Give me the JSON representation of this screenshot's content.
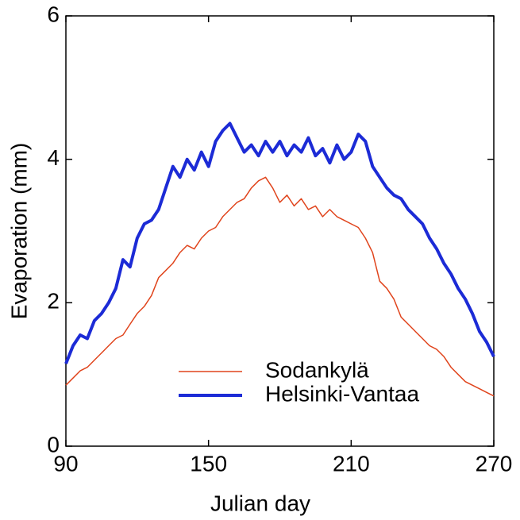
{
  "chart_data": {
    "type": "line",
    "x_label": "Julian day",
    "y_label": "Evaporation (mm)",
    "x": [
      90,
      93,
      96,
      99,
      102,
      105,
      108,
      111,
      114,
      117,
      120,
      123,
      126,
      129,
      132,
      135,
      138,
      141,
      144,
      147,
      150,
      153,
      156,
      159,
      162,
      165,
      168,
      171,
      174,
      177,
      180,
      183,
      186,
      189,
      192,
      195,
      198,
      201,
      204,
      207,
      210,
      213,
      216,
      219,
      222,
      225,
      228,
      231,
      234,
      237,
      240,
      243,
      246,
      249,
      252,
      255,
      258,
      261,
      264,
      267,
      270
    ],
    "series": [
      {
        "name": "Sodankylä",
        "color": "#e0441c",
        "values": [
          0.85,
          0.95,
          1.05,
          1.1,
          1.2,
          1.3,
          1.4,
          1.5,
          1.55,
          1.7,
          1.85,
          1.95,
          2.1,
          2.35,
          2.45,
          2.55,
          2.7,
          2.8,
          2.75,
          2.9,
          3.0,
          3.05,
          3.2,
          3.3,
          3.4,
          3.45,
          3.6,
          3.7,
          3.75,
          3.6,
          3.4,
          3.5,
          3.35,
          3.45,
          3.3,
          3.35,
          3.2,
          3.3,
          3.2,
          3.15,
          3.1,
          3.05,
          2.9,
          2.7,
          2.3,
          2.2,
          2.05,
          1.8,
          1.7,
          1.6,
          1.5,
          1.4,
          1.35,
          1.25,
          1.1,
          1.0,
          0.9,
          0.85,
          0.8,
          0.75,
          0.7
        ]
      },
      {
        "name": "Helsinki-Vantaa",
        "color": "#1c2bd6",
        "values": [
          1.15,
          1.4,
          1.55,
          1.5,
          1.75,
          1.85,
          2.0,
          2.2,
          2.6,
          2.5,
          2.9,
          3.1,
          3.15,
          3.3,
          3.6,
          3.9,
          3.75,
          4.0,
          3.85,
          4.1,
          3.9,
          4.25,
          4.4,
          4.5,
          4.3,
          4.1,
          4.2,
          4.05,
          4.25,
          4.1,
          4.25,
          4.05,
          4.2,
          4.1,
          4.3,
          4.05,
          4.15,
          3.95,
          4.2,
          4.0,
          4.1,
          4.35,
          4.25,
          3.9,
          3.75,
          3.6,
          3.5,
          3.45,
          3.3,
          3.2,
          3.1,
          2.9,
          2.75,
          2.55,
          2.4,
          2.2,
          2.05,
          1.85,
          1.6,
          1.45,
          1.25
        ]
      }
    ],
    "xlim": [
      90,
      270
    ],
    "xticks": [
      90,
      150,
      210,
      270
    ],
    "ylim": [
      0,
      6
    ],
    "yticks": [
      0,
      2,
      4,
      6
    ],
    "grid": false
  }
}
